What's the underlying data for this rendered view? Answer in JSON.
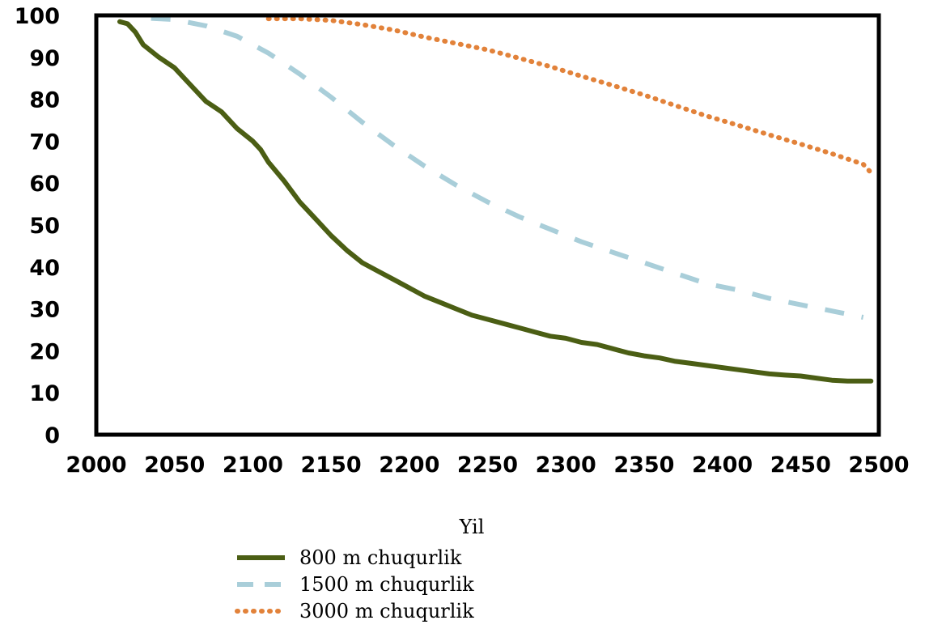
{
  "chart_data": {
    "type": "line",
    "title": "",
    "xlabel": "Yil",
    "ylabel": "",
    "xlim": [
      2000,
      2500
    ],
    "ylim": [
      0,
      100
    ],
    "x_ticks": [
      "2000",
      "2050",
      "2100",
      "2150",
      "2200",
      "2250",
      "2300",
      "2350",
      "2400",
      "2450",
      "2500"
    ],
    "y_ticks": [
      "0",
      "10",
      "20",
      "30",
      "40",
      "50",
      "60",
      "70",
      "80",
      "90",
      "100"
    ],
    "grid": false,
    "legend_position": "bottom",
    "series": [
      {
        "name": "800 m chuqurlik",
        "style": "solid",
        "color": "#4b5e14",
        "x": [
          2015,
          2020,
          2025,
          2030,
          2040,
          2050,
          2060,
          2070,
          2080,
          2090,
          2100,
          2105,
          2110,
          2120,
          2130,
          2140,
          2150,
          2160,
          2170,
          2180,
          2190,
          2200,
          2210,
          2220,
          2230,
          2240,
          2250,
          2260,
          2270,
          2280,
          2290,
          2300,
          2310,
          2320,
          2330,
          2340,
          2350,
          2360,
          2370,
          2380,
          2390,
          2400,
          2410,
          2420,
          2430,
          2440,
          2450,
          2460,
          2470,
          2480,
          2490,
          2495
        ],
        "y": [
          98.5,
          98,
          96,
          93,
          90,
          87.5,
          83.5,
          79.5,
          77,
          73,
          70,
          68,
          65,
          60.5,
          55.5,
          51.5,
          47.5,
          44,
          41,
          39,
          37,
          35,
          33,
          31.5,
          30,
          28.5,
          27.5,
          26.5,
          25.5,
          24.5,
          23.5,
          23,
          22,
          21.5,
          20.5,
          19.5,
          18.8,
          18.3,
          17.5,
          17,
          16.5,
          16,
          15.5,
          15,
          14.5,
          14.2,
          14,
          13.5,
          13,
          12.8,
          12.8,
          12.8
        ]
      },
      {
        "name": "1500 m chuqurlik",
        "style": "dashed",
        "color": "#a9ced9",
        "x": [
          2035,
          2050,
          2070,
          2090,
          2110,
          2130,
          2150,
          2170,
          2190,
          2210,
          2230,
          2250,
          2270,
          2290,
          2310,
          2330,
          2350,
          2370,
          2390,
          2410,
          2430,
          2450,
          2470,
          2490
        ],
        "y": [
          99.3,
          99,
          97.5,
          95,
          91,
          86,
          80.5,
          74.5,
          69,
          64,
          59.5,
          55.5,
          52,
          49,
          46,
          43.5,
          41,
          38.5,
          36,
          34.5,
          32.5,
          31,
          29.5,
          28
        ]
      },
      {
        "name": "3000 m chuqurlik",
        "style": "dotted",
        "color": "#e2823a",
        "x": [
          2110,
          2130,
          2150,
          2170,
          2190,
          2210,
          2230,
          2250,
          2270,
          2290,
          2310,
          2330,
          2350,
          2370,
          2390,
          2410,
          2430,
          2450,
          2470,
          2490,
          2495
        ],
        "y": [
          99.2,
          99.2,
          98.8,
          97.8,
          96.5,
          94.8,
          93.3,
          91.8,
          89.8,
          87.8,
          85.5,
          83.3,
          81,
          78.5,
          76,
          73.8,
          71.5,
          69.3,
          67,
          64.5,
          62.5
        ]
      }
    ]
  }
}
